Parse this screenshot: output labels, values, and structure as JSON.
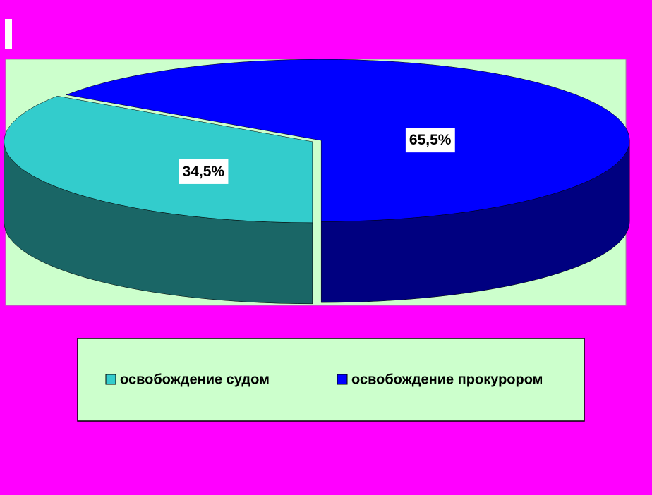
{
  "chart_data": {
    "type": "pie",
    "categories": [
      "освобождение судом",
      "освобождение прокурором"
    ],
    "values": [
      34.5,
      65.5
    ],
    "value_labels": [
      "34,5%",
      "65,5%"
    ],
    "colors": [
      "#33cccc",
      "#0000ff"
    ],
    "legend": "bottom"
  }
}
